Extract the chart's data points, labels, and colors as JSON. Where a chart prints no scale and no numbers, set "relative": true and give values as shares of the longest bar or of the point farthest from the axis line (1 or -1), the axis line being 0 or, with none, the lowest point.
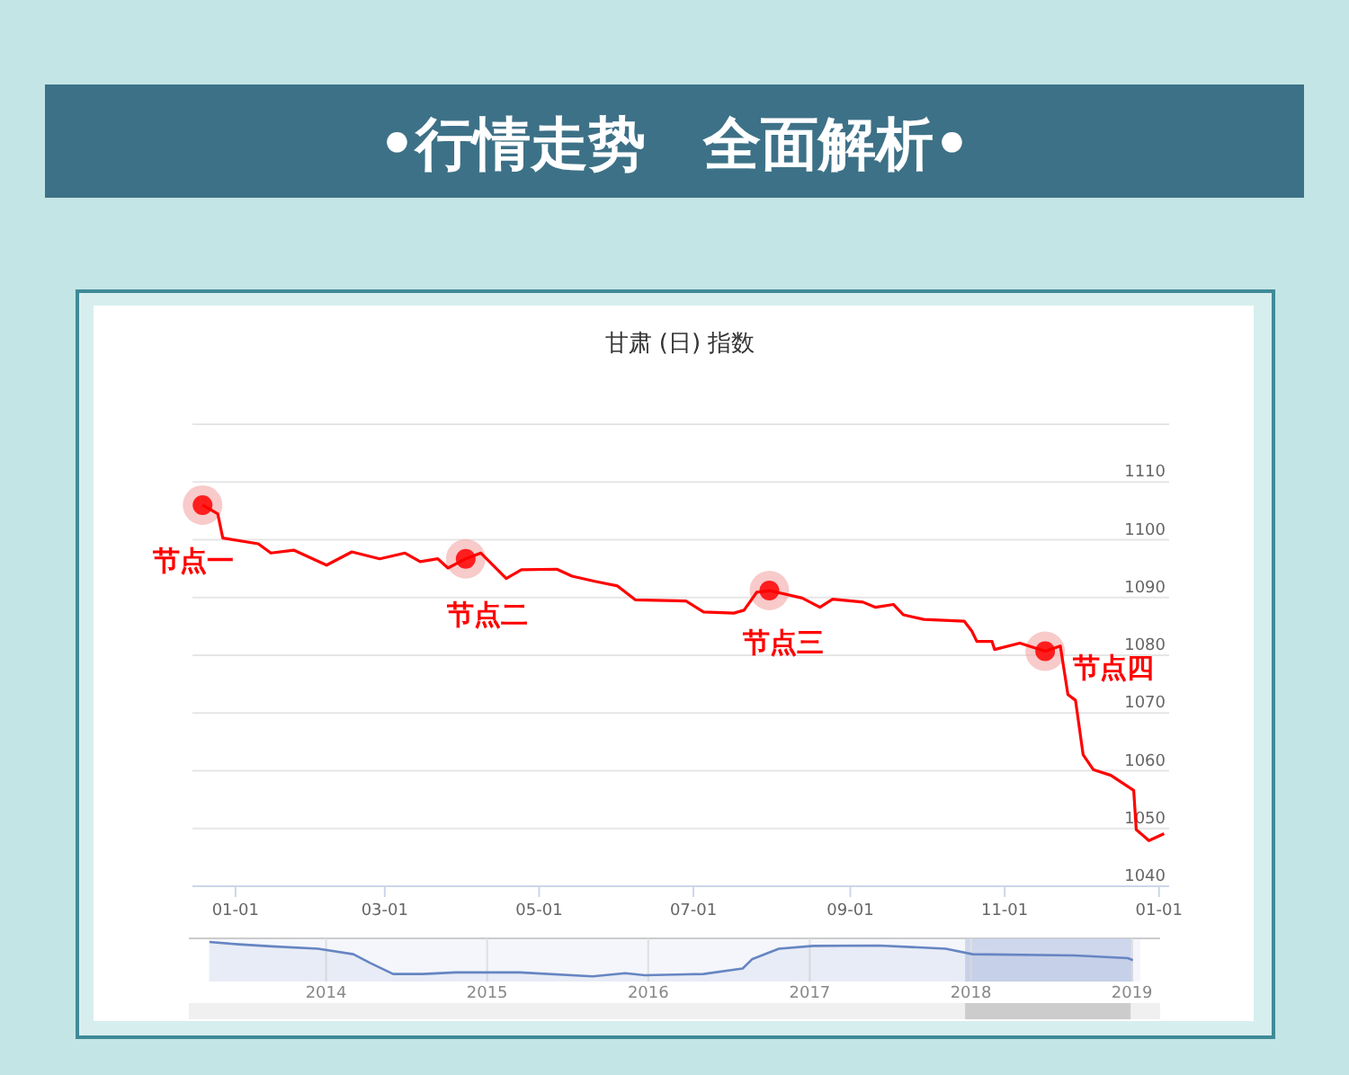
{
  "chart_data": [
    {
      "type": "line",
      "title": "•行情走势　全面解析•",
      "subtitle": "甘肃 (日) 指数",
      "x": [
        "2017-12-19",
        "2017-12-25",
        "2017-12-27",
        "2018-01-10",
        "2018-01-15",
        "2018-01-24",
        "2018-02-06",
        "2018-02-16",
        "2018-02-27",
        "2018-03-09",
        "2018-03-15",
        "2018-03-22",
        "2018-03-26",
        "2018-04-02",
        "2018-04-08",
        "2018-04-18",
        "2018-04-24",
        "2018-05-08",
        "2018-05-14",
        "2018-05-23",
        "2018-06-01",
        "2018-06-08",
        "2018-06-28",
        "2018-07-05",
        "2018-07-17",
        "2018-07-21",
        "2018-07-26",
        "2018-07-31",
        "2018-08-13",
        "2018-08-20",
        "2018-08-25",
        "2018-09-06",
        "2018-09-11",
        "2018-09-18",
        "2018-09-22",
        "2018-09-30",
        "2018-10-16",
        "2018-10-19",
        "2018-10-21",
        "2018-10-27",
        "2018-10-28",
        "2018-11-07",
        "2018-11-17",
        "2018-11-23",
        "2018-11-26",
        "2018-11-29",
        "2018-12-02",
        "2018-12-06",
        "2018-12-13",
        "2018-12-22",
        "2018-12-23",
        "2018-12-28",
        "2019-01-03"
      ],
      "series": [
        {
          "color": "#ff0000",
          "values": [
            1106.0,
            1104.5,
            1100.3,
            1099.3,
            1097.7,
            1098.2,
            1095.6,
            1097.9,
            1096.7,
            1097.7,
            1096.2,
            1096.7,
            1095.1,
            1096.7,
            1097.7,
            1093.3,
            1094.8,
            1094.9,
            1093.7,
            1092.8,
            1092.0,
            1089.6,
            1089.4,
            1087.5,
            1087.3,
            1087.8,
            1090.9,
            1091.2,
            1089.9,
            1088.3,
            1089.7,
            1089.2,
            1088.3,
            1088.8,
            1087.0,
            1086.2,
            1085.9,
            1084.2,
            1082.4,
            1082.4,
            1081.0,
            1082.1,
            1080.7,
            1081.6,
            1073.2,
            1072.2,
            1062.8,
            1060.2,
            1059.2,
            1056.6,
            1049.8,
            1047.9,
            1049.1
          ]
        }
      ],
      "xlim": [
        "2017-12-15",
        "2019-01-05"
      ],
      "xticks": [
        {
          "value": "2018-01-01",
          "label": "01-01"
        },
        {
          "value": "2018-03-01",
          "label": "03-01"
        },
        {
          "value": "2018-05-01",
          "label": "05-01"
        },
        {
          "value": "2018-07-01",
          "label": "07-01"
        },
        {
          "value": "2018-09-01",
          "label": "09-01"
        },
        {
          "value": "2018-11-01",
          "label": "11-01"
        },
        {
          "value": "2019-01-01",
          "label": "01-01"
        }
      ],
      "ylim": [
        1040,
        1120
      ],
      "yticks": [
        1040,
        1050,
        1060,
        1070,
        1080,
        1090,
        1100,
        1110,
        {
          "value": 1120,
          "label": null
        }
      ],
      "grid": "y",
      "marker": "none",
      "line_style": "solid",
      "annotations": [
        {
          "text": "节点一",
          "x": "2017-12-19",
          "y": 1106.0
        },
        {
          "text": "节点二",
          "x": "2018-04-02",
          "y": 1096.7
        },
        {
          "text": "节点三",
          "x": "2018-07-31",
          "y": 1091.2
        },
        {
          "text": "节点四",
          "x": "2018-11-17",
          "y": 1080.7
        }
      ]
    },
    {
      "type": "area",
      "relative": true,
      "x": [
        "2013-04-12",
        "2013-06-17",
        "2013-08-31",
        "2013-12-14",
        "2014-03-04",
        "2014-04-11",
        "2014-06-02",
        "2014-08-08",
        "2014-10-22",
        "2015-03-16",
        "2015-08-28",
        "2015-11-10",
        "2015-12-24",
        "2016-05-05",
        "2016-08-02",
        "2016-08-24",
        "2016-10-23",
        "2017-01-09",
        "2017-06-07",
        "2017-11-05",
        "2018-01-05",
        "2018-08-25",
        "2018-12-23",
        "2019-01-03"
      ],
      "series": [
        {
          "color": "#6685c2",
          "values": [
            1.0,
            0.94,
            0.89,
            0.83,
            0.69,
            0.47,
            0.19,
            0.19,
            0.23,
            0.23,
            0.13,
            0.21,
            0.16,
            0.19,
            0.33,
            0.57,
            0.83,
            0.9,
            0.91,
            0.83,
            0.69,
            0.66,
            0.59,
            0.54
          ]
        }
      ],
      "xlim": [
        "2013-04-10",
        "2019-01-20"
      ],
      "xticks": [
        {
          "value": "2014-01-01",
          "label": "2014"
        },
        {
          "value": "2015-01-01",
          "label": "2015"
        },
        {
          "value": "2016-01-01",
          "label": "2016"
        },
        {
          "value": "2017-01-01",
          "label": "2017"
        },
        {
          "value": "2018-01-01",
          "label": "2018"
        },
        {
          "value": "2019-01-01",
          "label": "2019"
        }
      ],
      "grid": "x",
      "bands": [
        {
          "axis": "x",
          "from": "2017-12-19",
          "to": "2019-01-03",
          "color": "#c5cfe9"
        }
      ]
    }
  ]
}
